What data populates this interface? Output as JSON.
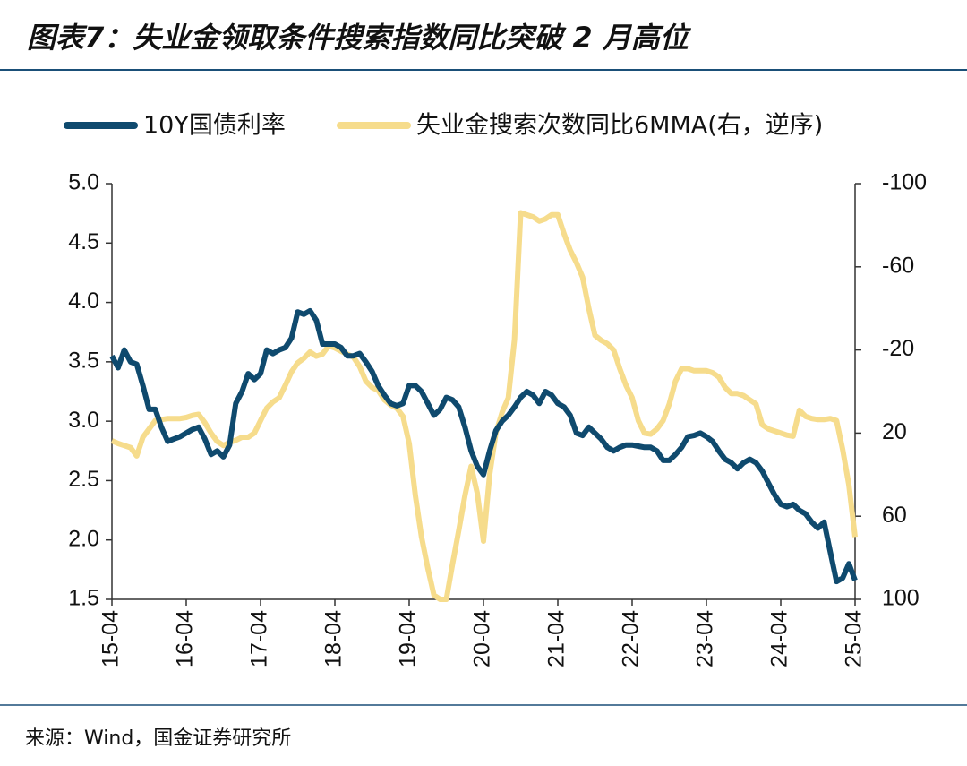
{
  "chart_data": {
    "type": "line",
    "title": "图表7：失业金领取条件搜索指数同比突破 2 月高位",
    "source": "来源：Wind，国金证券研究所",
    "categories": [
      "15-04",
      null,
      null,
      null,
      null,
      null,
      null,
      null,
      null,
      null,
      null,
      null,
      "16-04",
      null,
      null,
      null,
      null,
      null,
      null,
      null,
      null,
      null,
      null,
      null,
      "17-04",
      null,
      null,
      null,
      null,
      null,
      null,
      null,
      null,
      null,
      null,
      null,
      "18-04",
      null,
      null,
      null,
      null,
      null,
      null,
      null,
      null,
      null,
      null,
      null,
      "19-04",
      null,
      null,
      null,
      null,
      null,
      null,
      null,
      null,
      null,
      null,
      null,
      "20-04",
      null,
      null,
      null,
      null,
      null,
      null,
      null,
      null,
      null,
      null,
      null,
      "21-04",
      null,
      null,
      null,
      null,
      null,
      null,
      null,
      null,
      null,
      null,
      null,
      "22-04",
      null,
      null,
      null,
      null,
      null,
      null,
      null,
      null,
      null,
      null,
      null,
      "23-04",
      null,
      null,
      null,
      null,
      null,
      null,
      null,
      null,
      null,
      null,
      null,
      "24-04",
      null,
      null,
      null,
      null,
      null,
      null,
      null,
      null,
      null,
      null,
      null,
      "25-04"
    ],
    "series": [
      {
        "name": "10Y国债利率",
        "color": "#0f4a6e",
        "axis": "y",
        "values": [
          3.55,
          3.45,
          3.6,
          3.5,
          3.48,
          3.3,
          3.1,
          3.1,
          2.95,
          2.83,
          2.85,
          2.87,
          2.9,
          2.93,
          2.95,
          2.85,
          2.72,
          2.75,
          2.7,
          2.8,
          3.15,
          3.25,
          3.4,
          3.35,
          3.4,
          3.6,
          3.57,
          3.6,
          3.62,
          3.7,
          3.92,
          3.9,
          3.93,
          3.85,
          3.65,
          3.65,
          3.65,
          3.62,
          3.55,
          3.55,
          3.57,
          3.5,
          3.42,
          3.3,
          3.22,
          3.15,
          3.13,
          3.15,
          3.3,
          3.3,
          3.25,
          3.15,
          3.05,
          3.1,
          3.2,
          3.18,
          3.12,
          2.95,
          2.75,
          2.62,
          2.55,
          2.75,
          2.92,
          3.0,
          3.05,
          3.12,
          3.2,
          3.25,
          3.22,
          3.15,
          3.25,
          3.22,
          3.15,
          3.12,
          3.05,
          2.9,
          2.88,
          2.95,
          2.9,
          2.85,
          2.78,
          2.75,
          2.78,
          2.8,
          2.8,
          2.79,
          2.78,
          2.78,
          2.75,
          2.67,
          2.67,
          2.72,
          2.78,
          2.87,
          2.88,
          2.9,
          2.87,
          2.83,
          2.75,
          2.68,
          2.65,
          2.6,
          2.65,
          2.68,
          2.65,
          2.58,
          2.48,
          2.38,
          2.3,
          2.28,
          2.3,
          2.25,
          2.22,
          2.15,
          2.1,
          2.15,
          1.9,
          1.65,
          1.68,
          1.8,
          1.66
        ]
      },
      {
        "name": "失业金搜索次数同比6MMA(右，逆序)",
        "color": "#f6dc8c",
        "axis": "y2",
        "values": [
          23.7,
          25,
          26,
          27,
          31,
          22,
          18,
          14,
          13.5,
          13,
          13,
          13,
          12.5,
          11.5,
          11,
          15,
          20,
          24,
          26,
          24.5,
          23.5,
          22,
          22,
          20,
          14,
          8,
          5,
          3,
          -3,
          -9.5,
          -13.8,
          -16,
          -19,
          -17,
          -18,
          -22,
          -21,
          -19.4,
          -18,
          -16.5,
          -12,
          -5,
          -2,
          -0.5,
          4,
          6.5,
          8,
          12,
          25,
          50,
          70,
          85,
          98,
          100,
          100,
          83,
          67,
          50,
          36,
          49,
          72,
          40,
          20,
          10,
          3,
          -25,
          -86,
          -85,
          -84,
          -82,
          -83,
          -85,
          -85,
          -76,
          -68,
          -62,
          -55,
          -40,
          -27,
          -24.6,
          -23,
          -20,
          -11,
          -3,
          3,
          14,
          20,
          20.5,
          18,
          14,
          6,
          -5,
          -11,
          -11,
          -10,
          -10,
          -10,
          -9,
          -7,
          -2,
          1,
          1,
          2,
          4,
          6,
          16,
          18,
          19,
          20,
          21,
          21.5,
          9,
          12,
          13,
          13.5,
          13.5,
          13,
          14,
          28,
          45,
          70
        ]
      }
    ],
    "ylim": [
      1.5,
      5.0
    ],
    "yticks": [
      1.5,
      {
        "value": 2,
        "label": "2.0"
      },
      2.5,
      {
        "value": 3,
        "label": "3.0"
      },
      3.5,
      {
        "value": 4,
        "label": "4.0"
      },
      4.5,
      {
        "value": 5,
        "label": "5.0"
      }
    ],
    "y2lim": [
      -100,
      100
    ],
    "y2ticks": [
      -100,
      -60,
      -20,
      20,
      60,
      100
    ],
    "y2_inverted": true,
    "grid": false,
    "legend": "top"
  }
}
